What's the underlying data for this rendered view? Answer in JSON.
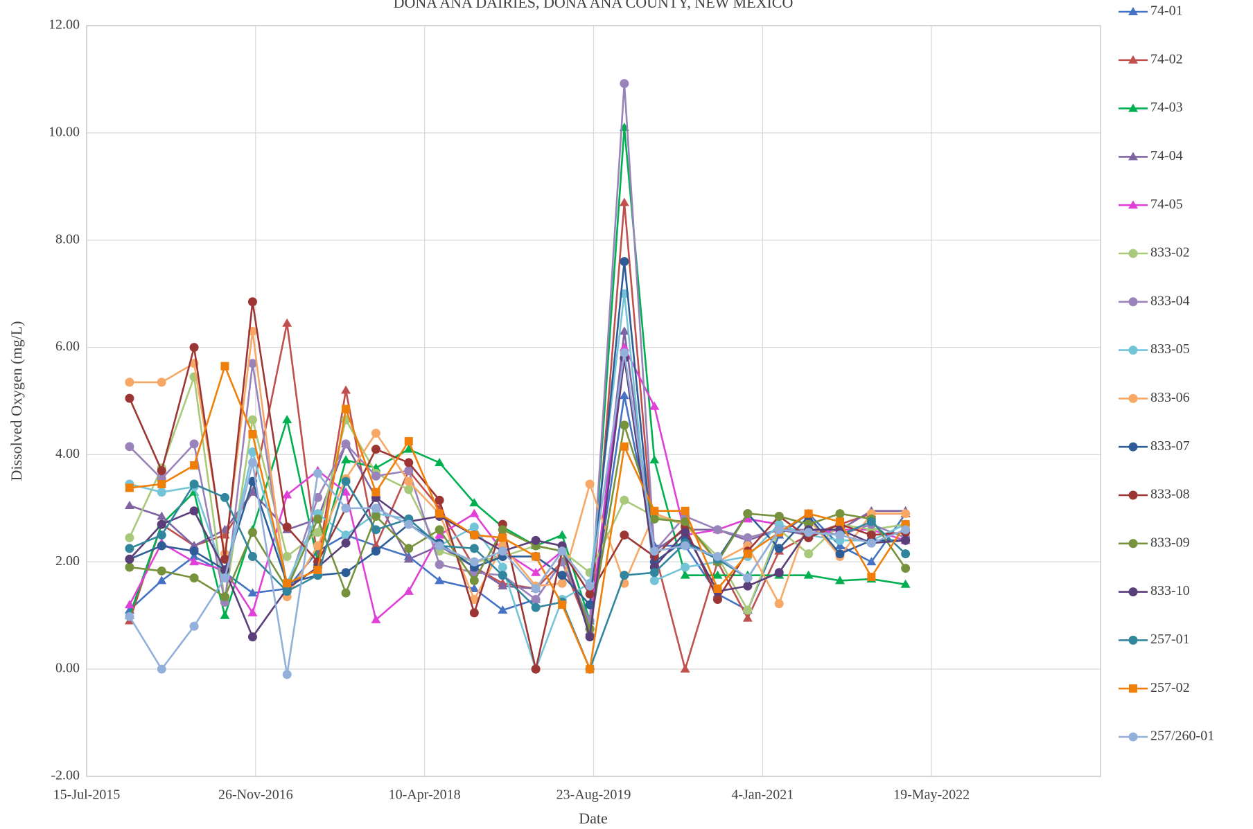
{
  "chart_data": {
    "type": "line",
    "title": "DONA ANA DAIRIES, DONA ANA COUNTY, NEW MEXICO",
    "x_label": "Date",
    "y_label": "Dissolved Oxygen (mg/L)",
    "x": [
      "2015-11-19",
      "2016-02-22",
      "2016-05-28",
      "2016-08-27",
      "2016-11-17",
      "2017-02-27",
      "2017-05-29",
      "2017-08-20",
      "2017-11-17",
      "2018-02-22",
      "2018-05-24",
      "2018-09-04",
      "2018-11-27",
      "2019-03-05",
      "2019-05-22",
      "2019-08-12",
      "2019-11-22",
      "2020-02-19",
      "2020-05-20",
      "2020-08-24",
      "2020-11-21",
      "2021-02-22",
      "2021-05-20",
      "2021-08-21",
      "2021-11-22",
      "2022-03-03"
    ],
    "xlim": [
      "2015-07-15",
      "2023-10-01"
    ],
    "xticks": [
      {
        "value": "2015-07-15",
        "label": "15-Jul-2015"
      },
      {
        "value": "2016-11-26",
        "label": "26-Nov-2016"
      },
      {
        "value": "2018-04-10",
        "label": "10-Apr-2018"
      },
      {
        "value": "2019-08-23",
        "label": "23-Aug-2019"
      },
      {
        "value": "2021-01-04",
        "label": "4-Jan-2021"
      },
      {
        "value": "2022-05-19",
        "label": "19-May-2022"
      }
    ],
    "ylim": [
      -2,
      12
    ],
    "yticks": [
      {
        "value": -2,
        "label": "-2.00"
      },
      {
        "value": 0,
        "label": "0.00"
      },
      {
        "value": 2,
        "label": "2.00"
      },
      {
        "value": 4,
        "label": "4.00"
      },
      {
        "value": 6,
        "label": "6.00"
      },
      {
        "value": 8,
        "label": "8.00"
      },
      {
        "value": 10,
        "label": "10.00"
      },
      {
        "value": 12,
        "label": "12.00"
      }
    ],
    "grid": true,
    "legend": "right",
    "series": [
      {
        "name": "74-01",
        "color": "#4472C4",
        "marker": "triangle",
        "values": [
          1.1,
          1.65,
          2.1,
          1.8,
          1.42,
          1.5,
          2.2,
          2.5,
          2.3,
          2.1,
          1.65,
          1.5,
          1.1,
          1.3,
          2.0,
          0.8,
          5.1,
          2.3,
          2.3,
          1.4,
          1.1,
          2.5,
          2.9,
          2.3,
          2.0,
          2.9
        ]
      },
      {
        "name": "74-02",
        "color": "#C0504D",
        "marker": "triangle",
        "values": [
          0.9,
          2.7,
          2.3,
          2.5,
          3.3,
          6.45,
          2.0,
          5.2,
          2.3,
          3.7,
          3.0,
          1.9,
          1.6,
          1.5,
          2.0,
          0.7,
          8.7,
          2.2,
          0,
          2.0,
          0.95,
          2.2,
          2.5,
          2.7,
          2.9,
          2.9
        ]
      },
      {
        "name": "74-03",
        "color": "#00B050",
        "marker": "triangle",
        "values": [
          1.0,
          2.7,
          3.3,
          1.0,
          2.6,
          4.65,
          2.0,
          3.9,
          3.75,
          4.1,
          3.85,
          3.1,
          2.65,
          2.3,
          2.5,
          0.9,
          10.1,
          3.9,
          1.75,
          1.75,
          1.75,
          1.75,
          1.75,
          1.65,
          1.68,
          1.58
        ]
      },
      {
        "name": "74-04",
        "color": "#8064A2",
        "marker": "triangle",
        "values": [
          3.05,
          2.85,
          2.3,
          2.6,
          3.3,
          2.6,
          2.8,
          4.2,
          3.2,
          2.05,
          2.3,
          1.9,
          1.55,
          1.5,
          2.2,
          0.7,
          6.3,
          2.2,
          2.6,
          2.6,
          2.4,
          2.6,
          2.5,
          2.6,
          2.95,
          2.95
        ]
      },
      {
        "name": "74-05",
        "color": "#E040D8",
        "marker": "triangle",
        "values": [
          1.2,
          2.35,
          2.0,
          1.85,
          1.05,
          3.25,
          3.7,
          3.3,
          0.92,
          1.45,
          2.5,
          2.9,
          2.2,
          1.8,
          2.2,
          0.8,
          6.0,
          4.9,
          2.5,
          2.6,
          2.8,
          2.7,
          2.5,
          2.6,
          2.6,
          2.4
        ]
      },
      {
        "name": "833-02",
        "color": "#A9C97A",
        "marker": "circle",
        "values": [
          2.45,
          3.75,
          5.45,
          1.25,
          4.65,
          2.1,
          2.55,
          4.65,
          3.65,
          3.35,
          2.2,
          2.0,
          2.1,
          2.3,
          2.2,
          1.8,
          3.15,
          2.85,
          2.7,
          2.1,
          1.1,
          2.6,
          2.15,
          2.7,
          2.6,
          2.7
        ]
      },
      {
        "name": "833-04",
        "color": "#9983BA",
        "marker": "circle",
        "values": [
          4.15,
          3.55,
          4.2,
          1.25,
          5.7,
          1.5,
          3.2,
          4.2,
          3.6,
          3.7,
          1.95,
          1.8,
          1.75,
          1.3,
          2.0,
          0.9,
          10.92,
          2.2,
          2.85,
          2.6,
          2.45,
          2.6,
          2.6,
          2.5,
          2.7,
          2.45
        ]
      },
      {
        "name": "833-05",
        "color": "#74C4D8",
        "marker": "circle",
        "values": [
          3.45,
          3.3,
          3.4,
          1.75,
          4.05,
          1.6,
          2.9,
          2.5,
          2.9,
          2.8,
          2.3,
          2.65,
          1.9,
          0,
          1.3,
          1.6,
          7.0,
          1.65,
          1.9,
          2.0,
          2.1,
          2.7,
          2.5,
          2.4,
          2.4,
          2.7
        ]
      },
      {
        "name": "833-06",
        "color": "#F8A866",
        "marker": "circle",
        "values": [
          5.35,
          5.35,
          5.7,
          2.15,
          6.3,
          1.35,
          2.3,
          3.55,
          4.4,
          3.5,
          2.9,
          1.3,
          2.3,
          1.55,
          1.6,
          3.45,
          1.6,
          2.9,
          2.7,
          2.0,
          2.3,
          1.22,
          2.8,
          2.1,
          2.9,
          2.9
        ]
      },
      {
        "name": "833-07",
        "color": "#2E5C96",
        "marker": "circle",
        "values": [
          2.05,
          2.3,
          2.2,
          1.85,
          3.5,
          1.6,
          1.75,
          1.8,
          2.2,
          2.7,
          2.35,
          1.9,
          2.1,
          2.1,
          1.75,
          1.2,
          7.6,
          2.0,
          2.4,
          2.05,
          2.9,
          2.25,
          2.85,
          2.15,
          2.4,
          2.4
        ]
      },
      {
        "name": "833-08",
        "color": "#9C3634",
        "marker": "circle",
        "values": [
          5.05,
          3.7,
          6.0,
          2.05,
          6.85,
          2.65,
          2.0,
          3.0,
          4.1,
          3.85,
          3.15,
          1.05,
          2.7,
          0,
          2.2,
          1.4,
          2.5,
          2.1,
          2.65,
          1.3,
          2.2,
          2.85,
          2.45,
          2.7,
          2.5,
          2.55
        ]
      },
      {
        "name": "833-09",
        "color": "#76923C",
        "marker": "circle",
        "values": [
          1.9,
          1.83,
          1.7,
          1.35,
          2.55,
          1.5,
          2.8,
          1.42,
          2.85,
          2.25,
          2.6,
          1.65,
          2.6,
          2.3,
          2.2,
          0.75,
          4.55,
          2.8,
          2.75,
          2.0,
          2.9,
          2.85,
          2.7,
          2.9,
          2.8,
          1.88
        ]
      },
      {
        "name": "833-10",
        "color": "#5A3E7A",
        "marker": "circle",
        "values": [
          2.05,
          2.7,
          2.95,
          1.85,
          0.6,
          1.5,
          1.9,
          2.35,
          3.2,
          2.75,
          2.85,
          2.5,
          2.2,
          2.4,
          2.3,
          0.6,
          5.8,
          1.9,
          2.55,
          1.45,
          1.55,
          1.8,
          2.6,
          2.6,
          2.35,
          2.4
        ]
      },
      {
        "name": "257-01",
        "color": "#31859C",
        "marker": "circle",
        "values": [
          2.25,
          2.5,
          3.45,
          3.2,
          2.1,
          1.45,
          1.75,
          3.5,
          2.6,
          2.8,
          2.3,
          2.25,
          1.75,
          1.15,
          1.25,
          0,
          1.75,
          1.8,
          2.35,
          2.05,
          1.7,
          2.6,
          2.55,
          2.5,
          2.75,
          2.15
        ]
      },
      {
        "name": "257-02",
        "color": "#F07F09",
        "marker": "square",
        "values": [
          3.38,
          3.45,
          3.8,
          5.65,
          4.38,
          1.6,
          1.85,
          4.85,
          3.3,
          4.25,
          2.9,
          2.5,
          2.45,
          2.1,
          1.2,
          0,
          4.15,
          2.95,
          2.95,
          1.5,
          2.15,
          2.55,
          2.9,
          2.75,
          1.72,
          2.7
        ]
      },
      {
        "name": "257/260-01",
        "color": "#93B0DB",
        "marker": "circle",
        "values": [
          0.98,
          0,
          0.8,
          1.7,
          3.85,
          -0.1,
          3.65,
          3.0,
          3.0,
          2.7,
          2.3,
          2.0,
          2.2,
          1.5,
          2.2,
          1.55,
          5.9,
          2.2,
          2.3,
          2.1,
          1.7,
          2.6,
          2.55,
          2.5,
          2.35,
          2.6
        ]
      }
    ]
  }
}
